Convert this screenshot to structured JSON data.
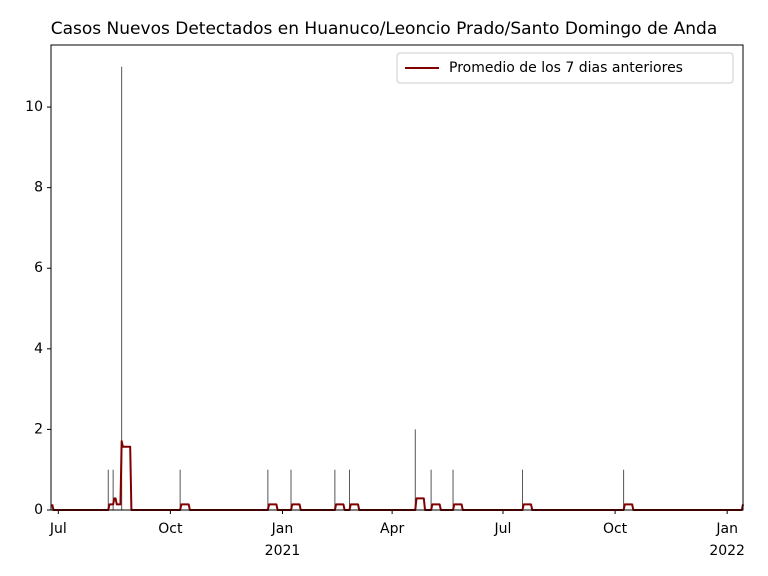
{
  "chart_data": {
    "type": "line",
    "title": "Casos Nuevos Detectados en Huanuco/Leoncio Prado/Santo Domingo de Anda",
    "xlim": [
      -6,
      562
    ],
    "ylim": [
      0,
      11.54
    ],
    "xticks": [
      {
        "value": 0,
        "label": "Jul"
      },
      {
        "value": 92,
        "label": "Oct"
      },
      {
        "value": 184,
        "label": "Jan",
        "year": "2021"
      },
      {
        "value": 274,
        "label": "Apr"
      },
      {
        "value": 365,
        "label": "Jul"
      },
      {
        "value": 457,
        "label": "Oct"
      },
      {
        "value": 549,
        "label": "Jan",
        "year": "2022"
      }
    ],
    "yticks": [
      0,
      2,
      4,
      6,
      8,
      10
    ],
    "bars": {
      "color": "#555555",
      "x": [
        41,
        45,
        52,
        100,
        172,
        191,
        227,
        239,
        293,
        306,
        324,
        381,
        464,
        562
      ],
      "values": [
        1,
        1,
        11,
        1,
        1,
        1,
        1,
        1,
        2,
        1,
        1,
        1,
        1,
        1
      ]
    },
    "legend": "upper right",
    "series": [
      {
        "name": "Promedio de los 7 dias anteriores",
        "color": "#800000",
        "x": [
          -5,
          -4,
          41,
          42,
          45,
          46,
          47,
          48,
          51,
          52,
          53,
          59,
          60,
          100,
          101,
          107,
          108,
          172,
          173,
          179,
          180,
          191,
          192,
          198,
          199,
          227,
          228,
          234,
          235,
          239,
          240,
          246,
          247,
          293,
          294,
          300,
          301,
          306,
          307,
          313,
          314,
          324,
          325,
          331,
          332,
          381,
          382,
          388,
          389,
          464,
          465,
          471,
          472,
          561,
          562
        ],
        "values": [
          0.14,
          0,
          0,
          0.14,
          0.14,
          0.29,
          0.29,
          0.14,
          0.14,
          1.71,
          1.57,
          1.57,
          0,
          0,
          0.14,
          0.14,
          0,
          0,
          0.14,
          0.14,
          0,
          0,
          0.14,
          0.14,
          0,
          0,
          0.14,
          0.14,
          0,
          0,
          0.14,
          0.14,
          0,
          0,
          0.29,
          0.29,
          0,
          0,
          0.14,
          0.14,
          0,
          0,
          0.14,
          0.14,
          0,
          0,
          0.14,
          0.14,
          0,
          0,
          0.14,
          0.14,
          0,
          0,
          0.14
        ]
      }
    ]
  }
}
